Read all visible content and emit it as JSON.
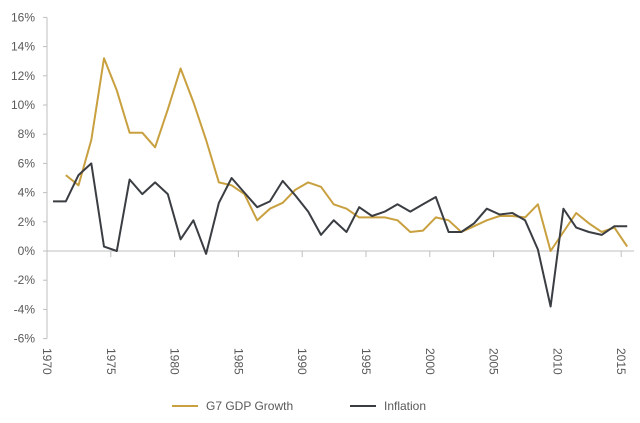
{
  "chart_data": {
    "type": "line",
    "title": "",
    "xlabel": "",
    "ylabel": "",
    "ylim": [
      -6,
      16
    ],
    "yticks": [
      -6,
      -4,
      -2,
      0,
      2,
      4,
      6,
      8,
      10,
      12,
      14,
      16
    ],
    "ytick_format": "percent",
    "xticks": [
      "1970",
      "1975",
      "1980",
      "1985",
      "1990",
      "1995",
      "2000",
      "2005",
      "2010",
      "2015"
    ],
    "grid": false,
    "legend_position": "bottom",
    "series": [
      {
        "name": "G7 GDP Growth",
        "color": "#C9A03F",
        "x": [
          1971,
          1972,
          1973,
          1974,
          1975,
          1976,
          1977,
          1978,
          1979,
          1980,
          1981,
          1982,
          1983,
          1984,
          1985,
          1986,
          1987,
          1988,
          1989,
          1990,
          1991,
          1992,
          1993,
          1994,
          1995,
          1996,
          1997,
          1998,
          1999,
          2000,
          2001,
          2002,
          2003,
          2004,
          2005,
          2006,
          2007,
          2008,
          2009,
          2010,
          2011,
          2012,
          2013,
          2014,
          2015
        ],
        "values": [
          5.2,
          4.5,
          7.6,
          13.2,
          11.0,
          8.1,
          8.1,
          7.1,
          9.7,
          12.5,
          10.2,
          7.6,
          4.7,
          4.5,
          3.9,
          2.1,
          2.9,
          3.3,
          4.2,
          4.7,
          4.4,
          3.2,
          2.9,
          2.3,
          2.3,
          2.3,
          2.1,
          1.3,
          1.4,
          2.3,
          2.1,
          1.3,
          1.7,
          2.1,
          2.4,
          2.4,
          2.3,
          3.2,
          0.0,
          1.3,
          2.6,
          1.9,
          1.3,
          1.6,
          0.3
        ]
      },
      {
        "name": "Inflation",
        "color": "#3A3D42",
        "x": [
          1970,
          1971,
          1972,
          1973,
          1974,
          1975,
          1976,
          1977,
          1978,
          1979,
          1980,
          1981,
          1982,
          1983,
          1984,
          1985,
          1986,
          1987,
          1988,
          1989,
          1990,
          1991,
          1992,
          1993,
          1994,
          1995,
          1996,
          1997,
          1998,
          1999,
          2000,
          2001,
          2002,
          2003,
          2004,
          2005,
          2006,
          2007,
          2008,
          2009,
          2010,
          2011,
          2012,
          2013,
          2014,
          2015
        ],
        "values": [
          3.4,
          3.4,
          5.2,
          6.0,
          0.3,
          0.0,
          4.9,
          3.9,
          4.7,
          3.9,
          0.8,
          2.1,
          -0.2,
          3.3,
          5.0,
          4.0,
          3.0,
          3.4,
          4.8,
          3.8,
          2.7,
          1.1,
          2.1,
          1.3,
          3.0,
          2.4,
          2.7,
          3.2,
          2.7,
          3.2,
          3.7,
          1.3,
          1.3,
          1.9,
          2.9,
          2.5,
          2.6,
          2.1,
          0.1,
          -3.8,
          2.9,
          1.6,
          1.3,
          1.1,
          1.7,
          1.7
        ]
      }
    ]
  }
}
